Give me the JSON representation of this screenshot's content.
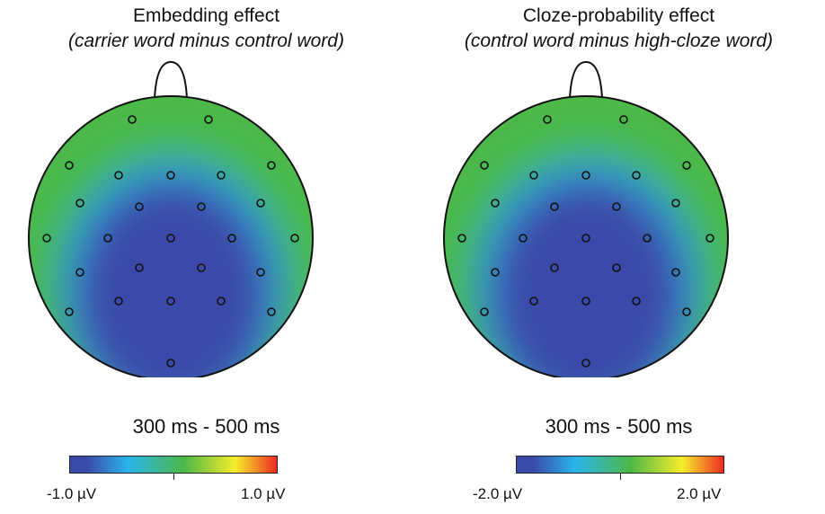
{
  "panels": [
    {
      "title": "Embedding effect",
      "subtitle": "(carrier word minus control word)",
      "time_window": "300 ms - 500 ms",
      "scale_min": "-1.0 µV",
      "scale_max": "1.0 µV"
    },
    {
      "title": "Cloze-probability effect",
      "subtitle": "(control word minus high-cloze word)",
      "time_window": "300 ms - 500 ms",
      "scale_min": "-2.0 µV",
      "scale_max": "2.0 µV"
    }
  ],
  "colors": {
    "negative": "#3a4aa8",
    "mid_low": "#2ab4ec",
    "neutral": "#4cb848",
    "mid_high": "#f6ee2a",
    "positive": "#ee2a24"
  }
}
